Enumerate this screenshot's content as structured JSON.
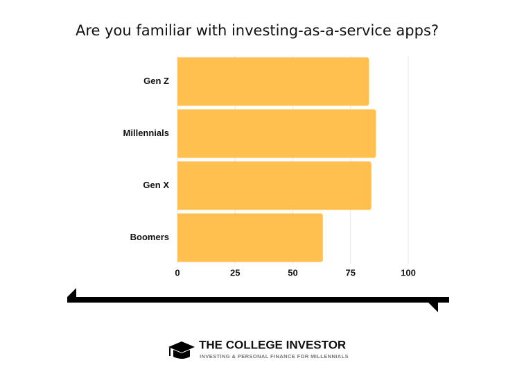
{
  "chart_data": {
    "type": "bar",
    "orientation": "horizontal",
    "title": "Are you familiar with investing-as-a-service apps?",
    "categories": [
      "Gen Z",
      "Millennials",
      "Gen X",
      "Boomers"
    ],
    "values": [
      83,
      86,
      84,
      63
    ],
    "color": "#ffc04f",
    "xlim": [
      0,
      100
    ],
    "xticks": [
      0,
      25,
      50,
      75,
      100
    ],
    "grid": true
  },
  "logo": {
    "title": "THE COLLEGE INVESTOR",
    "tagline": "INVESTING & PERSONAL FINANCE FOR MILLENNIALS"
  }
}
